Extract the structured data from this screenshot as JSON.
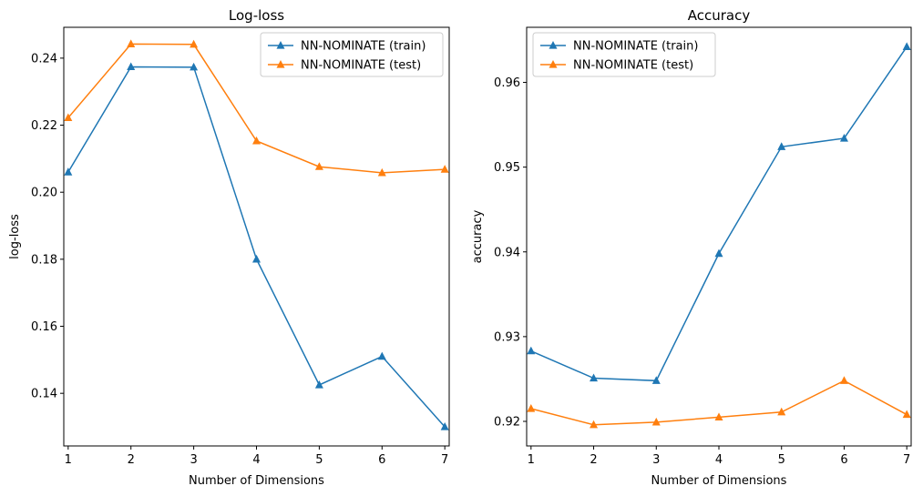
{
  "chart_data": [
    {
      "type": "line",
      "title": "Log-loss",
      "xlabel": "Number of Dimensions",
      "ylabel": "log-loss",
      "x": [
        1,
        2,
        3,
        4,
        5,
        6,
        7
      ],
      "xlim": [
        0.93,
        7.07
      ],
      "ylim": [
        0.1243,
        0.2492
      ],
      "xticks": [
        "1",
        "2",
        "3",
        "4",
        "5",
        "6",
        "7"
      ],
      "yticks": [
        "0.14",
        "0.16",
        "0.18",
        "0.20",
        "0.22",
        "0.24"
      ],
      "ytick_values": [
        0.14,
        0.16,
        0.18,
        0.2,
        0.22,
        0.24
      ],
      "legend_position": "upper right",
      "grid": false,
      "series": [
        {
          "name": "NN-NOMINATE (train)",
          "color": "#1f77b4",
          "marker": "triangle-up",
          "values": [
            0.206,
            0.2374,
            0.2373,
            0.18,
            0.1425,
            0.151,
            0.13
          ]
        },
        {
          "name": "NN-NOMINATE (test)",
          "color": "#ff7f0e",
          "marker": "triangle-up",
          "values": [
            0.2222,
            0.2442,
            0.2441,
            0.2153,
            0.2076,
            0.2058,
            0.2068
          ]
        }
      ]
    },
    {
      "type": "line",
      "title": "Accuracy",
      "xlabel": "Number of Dimensions",
      "ylabel": "accuracy",
      "x": [
        1,
        2,
        3,
        4,
        5,
        6,
        7
      ],
      "xlim": [
        0.93,
        7.07
      ],
      "ylim": [
        0.9171,
        0.9665
      ],
      "xticks": [
        "1",
        "2",
        "3",
        "4",
        "5",
        "6",
        "7"
      ],
      "yticks": [
        "0.92",
        "0.93",
        "0.94",
        "0.95",
        "0.96"
      ],
      "ytick_values": [
        0.92,
        0.93,
        0.94,
        0.95,
        0.96
      ],
      "legend_position": "upper left",
      "grid": false,
      "series": [
        {
          "name": "NN-NOMINATE (train)",
          "color": "#1f77b4",
          "marker": "triangle-up",
          "values": [
            0.9283,
            0.9251,
            0.9248,
            0.9398,
            0.9524,
            0.9534,
            0.9642
          ]
        },
        {
          "name": "NN-NOMINATE (test)",
          "color": "#ff7f0e",
          "marker": "triangle-up",
          "values": [
            0.9215,
            0.9196,
            0.9199,
            0.9205,
            0.9211,
            0.9248,
            0.9208
          ]
        }
      ]
    }
  ]
}
